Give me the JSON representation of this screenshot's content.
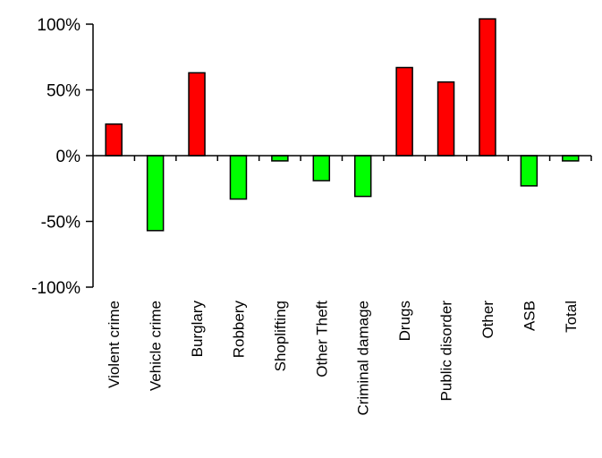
{
  "chart_data": {
    "type": "bar",
    "title": "",
    "xlabel": "",
    "ylabel": "",
    "categories": [
      "Violent crime",
      "Vehicle crime",
      "Burglary",
      "Robbery",
      "Shoplifting",
      "Other Theft",
      "Criminal damage",
      "Drugs",
      "Public disorder",
      "Other",
      "ASB",
      "Total"
    ],
    "values": [
      24,
      -57,
      63,
      -33,
      -4,
      -19,
      -31,
      67,
      56,
      104,
      -23,
      -4
    ],
    "ylim": [
      -100,
      100
    ],
    "yticks": [
      -100,
      -50,
      0,
      50,
      100
    ],
    "ytick_labels": [
      "-100%",
      "-50%",
      "0%",
      "50%",
      "100%"
    ],
    "grid": false,
    "legend": "none",
    "colors": {
      "positive": "#ff0000",
      "negative": "#00ff00",
      "outline": "#000000"
    }
  }
}
